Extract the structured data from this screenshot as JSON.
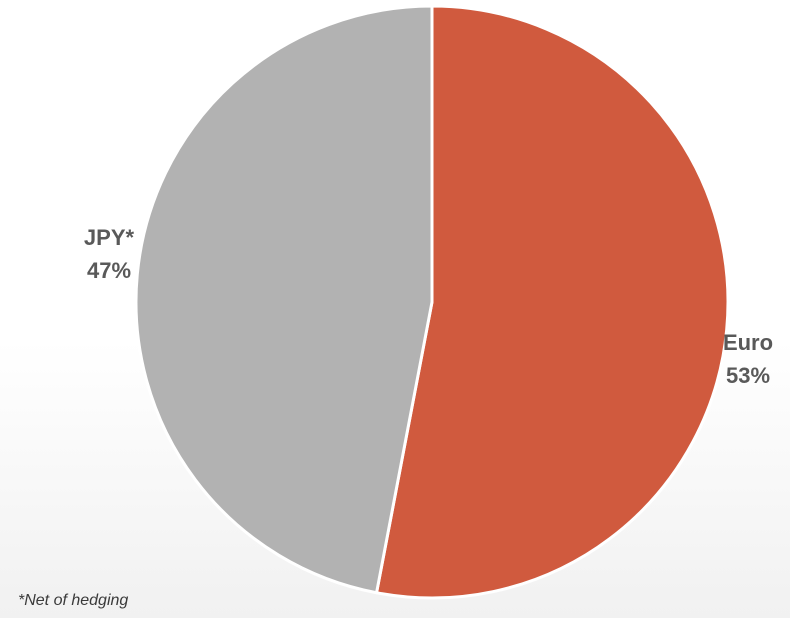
{
  "chart_data": {
    "type": "pie",
    "title": "",
    "slices": [
      {
        "label": "Euro",
        "value": 53,
        "value_label": "53%",
        "color": "#d05a3e"
      },
      {
        "label": "JPY*",
        "value": 47,
        "value_label": "47%",
        "color": "#b2b2b2"
      }
    ],
    "start": "12 o'clock",
    "direction": "clockwise",
    "legend": "none",
    "footnote": "*Net of hedging"
  }
}
